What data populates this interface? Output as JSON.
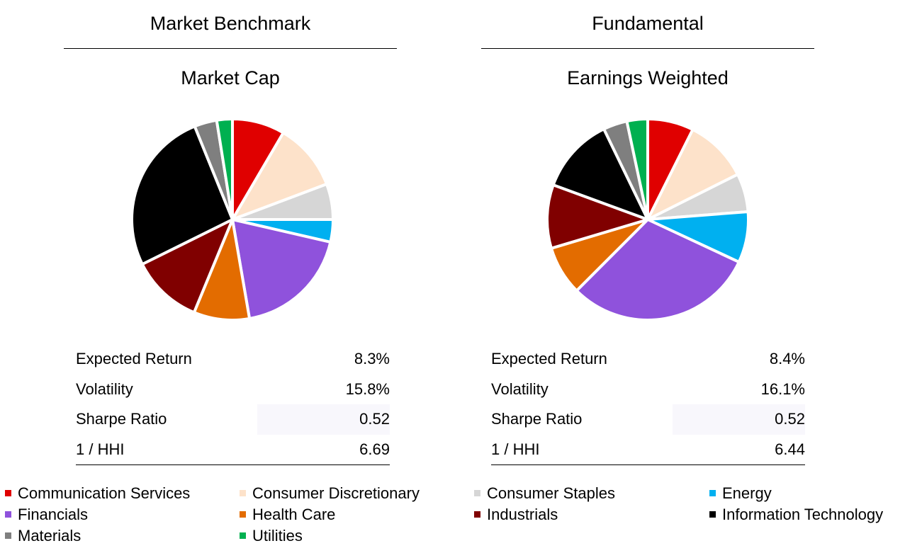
{
  "chart_data": [
    {
      "type": "pie",
      "group_title": "Market Benchmark",
      "title": "Market Cap",
      "categories": [
        "Communication Services",
        "Consumer Discretionary",
        "Consumer Staples",
        "Energy",
        "Financials",
        "Health Care",
        "Industrials",
        "Information Technology",
        "Materials",
        "Utilities"
      ],
      "values": [
        8.4,
        10.8,
        5.7,
        3.6,
        18.6,
        8.9,
        11.4,
        26.1,
        3.6,
        2.5
      ],
      "stats": [
        {
          "label": "Expected Return",
          "value": "8.3%"
        },
        {
          "label": "Volatility",
          "value": "15.8%"
        },
        {
          "label": "Sharpe Ratio",
          "value": "0.52"
        },
        {
          "label": "1 / HHI",
          "value": "6.69"
        }
      ]
    },
    {
      "type": "pie",
      "group_title": "Fundamental",
      "title": "Earnings Weighted",
      "categories": [
        "Communication Services",
        "Consumer Discretionary",
        "Consumer Staples",
        "Energy",
        "Financials",
        "Health Care",
        "Industrials",
        "Information Technology",
        "Materials",
        "Utilities"
      ],
      "values": [
        7.3,
        10.1,
        6.1,
        8.1,
        30.2,
        7.8,
        10.1,
        12.1,
        3.8,
        3.3
      ],
      "stats": [
        {
          "label": "Expected Return",
          "value": "8.4%"
        },
        {
          "label": "Volatility",
          "value": "16.1%"
        },
        {
          "label": "Sharpe Ratio",
          "value": "0.52"
        },
        {
          "label": "1 / HHI",
          "value": "6.44"
        }
      ]
    }
  ],
  "legend": {
    "placement": "bottom",
    "items": [
      {
        "label": "Communication Services",
        "color": "#e00000"
      },
      {
        "label": "Consumer Discretionary",
        "color": "#fde2ca"
      },
      {
        "label": "Consumer Staples",
        "color": "#d6d6d6"
      },
      {
        "label": "Energy",
        "color": "#00b0f0"
      },
      {
        "label": "Financials",
        "color": "#8f52dc"
      },
      {
        "label": "Health Care",
        "color": "#e36c00"
      },
      {
        "label": "Industrials",
        "color": "#800000"
      },
      {
        "label": "Information Technology",
        "color": "#000000"
      },
      {
        "label": "Materials",
        "color": "#7f7f7f"
      },
      {
        "label": "Utilities",
        "color": "#00b050"
      }
    ]
  }
}
